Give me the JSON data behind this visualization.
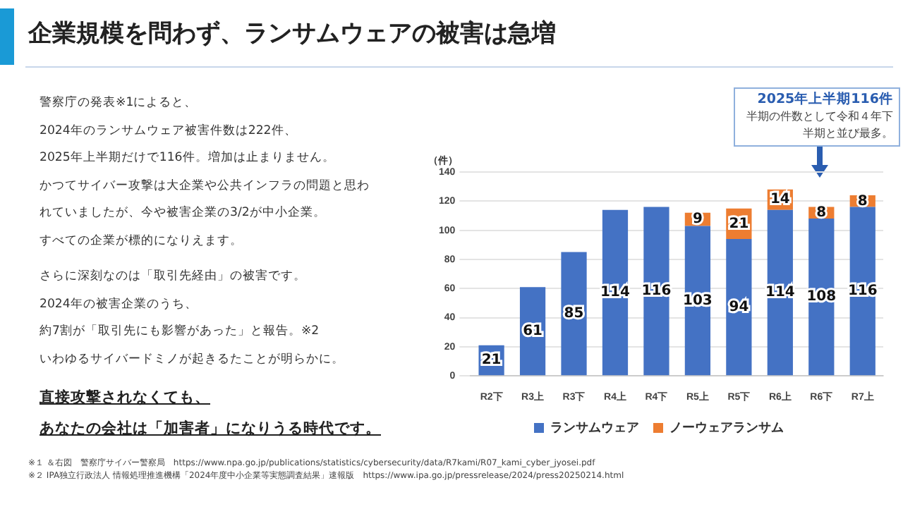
{
  "chart_data": {
    "type": "bar",
    "title": "企業規模を問わず、ランサムウェアの被害は急増",
    "ylabel": "（件）",
    "categories": [
      "R2下",
      "R3上",
      "R3下",
      "R4上",
      "R4下",
      "R5上",
      "R5下",
      "R6上",
      "R6下",
      "R7上"
    ],
    "series": [
      {
        "name": "ランサムウェア",
        "color": "#4472c4",
        "values": [
          21,
          61,
          85,
          114,
          116,
          103,
          94,
          114,
          108,
          116
        ]
      },
      {
        "name": "ノーウェアランサム",
        "color": "#ed7d31",
        "values": [
          null,
          null,
          null,
          null,
          null,
          9,
          21,
          14,
          8,
          8
        ]
      }
    ],
    "stacked": true,
    "data_labels": true,
    "legend": "bottom",
    "grid": "y",
    "ylim": [
      0,
      140
    ],
    "yticks": [
      0,
      20,
      40,
      60,
      80,
      100,
      120,
      140
    ],
    "annotations": [
      "警察庁の発表※1によると、",
      "2024年のランサムウェア被害件数は222件、",
      "2025年上半期だけで116件。増加は止まりません。",
      "かつてサイバー攻撃は大企業や公共インフラの問題と思わ",
      "れていましたが、今や被害企業の3/2が中小企業。",
      "すべての企業が標的になりえます。",
      "さらに深刻なのは「取引先経由」の被害です。",
      "2024年の被害企業のうち、",
      "約7割が「取引先にも影響があった」と報告。※2",
      "いわゆるサイバードミノが起きるたことが明らかに。",
      "直接攻撃されなくても、",
      "あなたの会社は「加害者」になりうる時代です。",
      "2025年上半期116件",
      "半期の件数として令和４年下半期と並び最多。",
      "※１ ＆右図　警察庁サイバー警察局　https://www.npa.go.jp/publications/statistics/cybersecurity/data/R7kami/R07_kami_cyber_jyosei.pdf",
      "※２ IPA独立行政法人 情報処理推進機構「2024年度中小企業等実態調査結果」速報版　https://www.ipa.go.jp/pressrelease/2024/press20250214.html"
    ]
  }
}
